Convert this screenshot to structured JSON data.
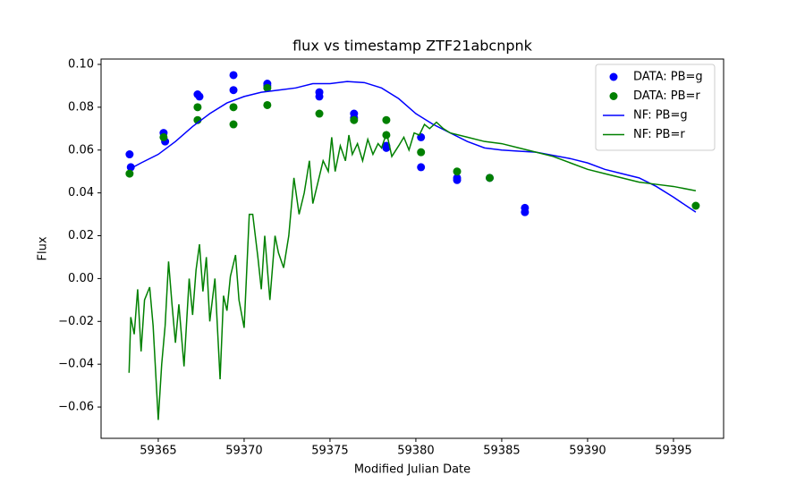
{
  "chart_data": {
    "type": "scatter",
    "title": "flux vs timestamp ZTF21abcnpnk",
    "x_label": "Modified Julian Date",
    "y_label": "Flux",
    "xlim": [
      59361.67,
      59397.92
    ],
    "ylim": [
      -0.0746,
      0.1025
    ],
    "xticks": [
      59365,
      59370,
      59375,
      59380,
      59385,
      59390,
      59395
    ],
    "yticks": [
      {
        "value": -0.06,
        "label": "−0.06"
      },
      {
        "value": -0.04,
        "label": "−0.04"
      },
      {
        "value": -0.02,
        "label": "−0.02"
      },
      {
        "value": 0,
        "label": "0.00"
      },
      {
        "value": 0.02,
        "label": "0.02"
      },
      {
        "value": 0.04,
        "label": "0.04"
      },
      {
        "value": 0.06,
        "label": "0.06"
      },
      {
        "value": 0.08,
        "label": "0.08"
      },
      {
        "value": 0.1,
        "label": "0.10"
      }
    ],
    "grid": false,
    "legend": "upper right",
    "series": [
      {
        "name": "DATA: PB=g",
        "type": "scatter",
        "color": "#0000ff",
        "x": [
          59363.33,
          59363.4,
          59365.31,
          59365.4,
          59367.29,
          59367.4,
          59369.38,
          59369.38,
          59371.35,
          59371.35,
          59374.38,
          59374.38,
          59376.4,
          59376.4,
          59378.28,
          59378.28,
          59380.3,
          59380.3,
          59382.4,
          59382.4,
          59384.3,
          59386.35,
          59386.35
        ],
        "values": [
          0.058,
          0.052,
          0.068,
          0.064,
          0.086,
          0.085,
          0.095,
          0.088,
          0.091,
          0.09,
          0.087,
          0.085,
          0.077,
          0.075,
          0.062,
          0.061,
          0.066,
          0.052,
          0.047,
          0.046,
          0.047,
          0.033,
          0.031
        ]
      },
      {
        "name": "DATA: PB=r",
        "type": "scatter",
        "color": "#008000",
        "x": [
          59363.33,
          59365.31,
          59367.29,
          59367.29,
          59369.38,
          59369.38,
          59371.35,
          59371.35,
          59374.38,
          59376.4,
          59378.28,
          59378.28,
          59380.3,
          59382.4,
          59384.3,
          59396.3
        ],
        "values": [
          0.049,
          0.066,
          0.08,
          0.074,
          0.08,
          0.072,
          0.089,
          0.081,
          0.077,
          0.074,
          0.074,
          0.067,
          0.059,
          0.05,
          0.047,
          0.034
        ]
      },
      {
        "name": "NF: PB=g",
        "type": "line",
        "color": "#0000ff",
        "x": [
          59363.3,
          59364,
          59365,
          59366,
          59367,
          59368,
          59369,
          59370,
          59371,
          59372,
          59373,
          59374,
          59375,
          59376,
          59377,
          59378,
          59379,
          59380,
          59381,
          59382,
          59383,
          59384,
          59385,
          59386,
          59387,
          59388,
          59389,
          59390,
          59391,
          59392,
          59393,
          59394,
          59395,
          59396.3
        ],
        "values": [
          0.051,
          0.054,
          0.058,
          0.064,
          0.071,
          0.077,
          0.082,
          0.085,
          0.087,
          0.088,
          0.089,
          0.091,
          0.091,
          0.092,
          0.0915,
          0.089,
          0.084,
          0.077,
          0.072,
          0.068,
          0.064,
          0.061,
          0.06,
          0.0595,
          0.059,
          0.0575,
          0.056,
          0.054,
          0.051,
          0.049,
          0.047,
          0.043,
          0.038,
          0.031
        ]
      },
      {
        "name": "NF: PB=r",
        "type": "line",
        "color": "#008000",
        "x": [
          59363.3,
          59363.4,
          59363.6,
          59363.8,
          59364,
          59364.2,
          59364.5,
          59364.7,
          59365,
          59365.2,
          59365.4,
          59365.6,
          59365.8,
          59366,
          59366.2,
          59366.5,
          59366.8,
          59367,
          59367.2,
          59367.4,
          59367.6,
          59367.8,
          59368,
          59368.3,
          59368.6,
          59368.8,
          59369,
          59369.2,
          59369.5,
          59369.7,
          59370,
          59370.3,
          59370.5,
          59370.8,
          59371,
          59371.2,
          59371.5,
          59371.8,
          59372,
          59372.3,
          59372.6,
          59372.9,
          59373.2,
          59373.5,
          59373.8,
          59374,
          59374.3,
          59374.6,
          59374.9,
          59375.1,
          59375.3,
          59375.6,
          59375.9,
          59376.1,
          59376.3,
          59376.6,
          59376.9,
          59377.2,
          59377.5,
          59377.8,
          59378,
          59378.3,
          59378.6,
          59379,
          59379.3,
          59379.6,
          59379.9,
          59380.2,
          59380.5,
          59380.8,
          59381.2,
          59381.6,
          59382,
          59383,
          59384,
          59385,
          59386,
          59387,
          59388,
          59389,
          59390,
          59391,
          59392,
          59393,
          59394,
          59395,
          59396.3
        ],
        "values": [
          -0.044,
          -0.018,
          -0.026,
          -0.005,
          -0.034,
          -0.01,
          -0.004,
          -0.022,
          -0.066,
          -0.04,
          -0.022,
          0.008,
          -0.012,
          -0.03,
          -0.012,
          -0.041,
          0,
          -0.017,
          0.004,
          0.016,
          -0.006,
          0.01,
          -0.02,
          0,
          -0.047,
          -0.008,
          -0.015,
          0.001,
          0.011,
          -0.01,
          -0.023,
          0.03,
          0.03,
          0.01,
          -0.005,
          0.02,
          -0.01,
          0.02,
          0.012,
          0.005,
          0.02,
          0.047,
          0.03,
          0.04,
          0.055,
          0.035,
          0.045,
          0.055,
          0.05,
          0.066,
          0.05,
          0.062,
          0.055,
          0.067,
          0.058,
          0.063,
          0.055,
          0.065,
          0.058,
          0.063,
          0.061,
          0.068,
          0.057,
          0.062,
          0.066,
          0.06,
          0.068,
          0.067,
          0.072,
          0.07,
          0.073,
          0.07,
          0.068,
          0.066,
          0.064,
          0.063,
          0.061,
          0.059,
          0.057,
          0.054,
          0.051,
          0.049,
          0.047,
          0.045,
          0.044,
          0.043,
          0.041
        ]
      }
    ]
  }
}
